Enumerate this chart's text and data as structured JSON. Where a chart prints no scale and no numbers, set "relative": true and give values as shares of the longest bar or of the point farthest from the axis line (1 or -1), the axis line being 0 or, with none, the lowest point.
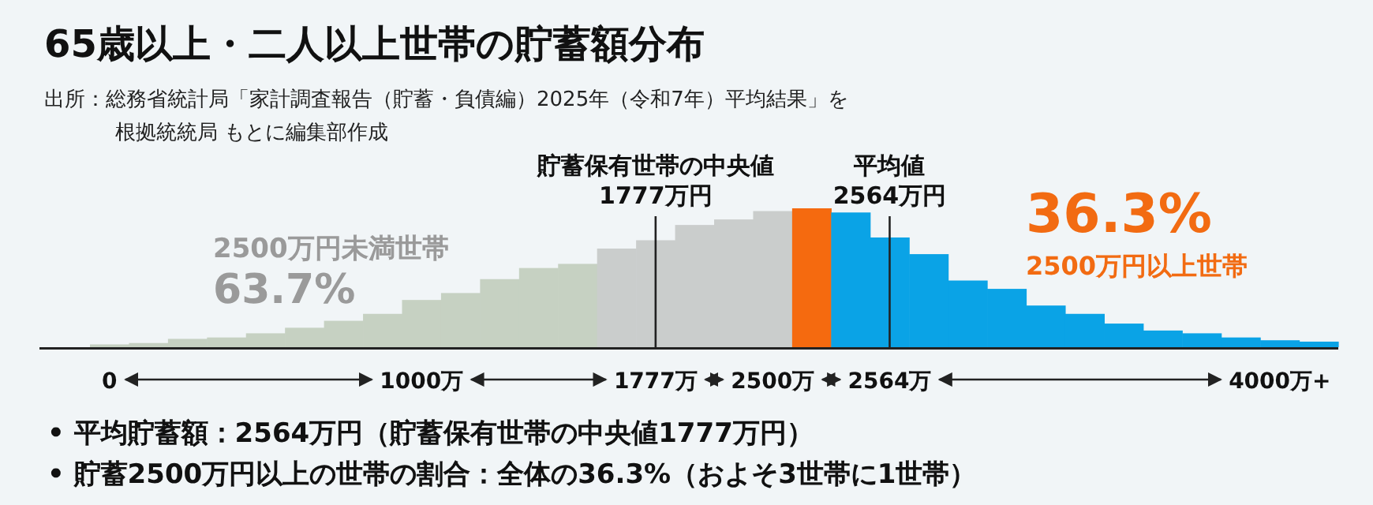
{
  "chart_data": {
    "type": "bar",
    "relative": true,
    "title": "65歳以上・二人以上世帯の貯蓄額分布",
    "annotations": [
      "出所：総務省統計局「家計調査報告（貯蓄・負債編）2025年（令和7年）平均結果」を",
      "根拠統統局 もとに編集部作成",
      "2500万円未満世帯",
      "63.7%",
      "36.3%",
      "2500万円以上世帯",
      "• 平均貯蓄額：2564万円（貯蓄保有世帯の中央値1777万円）",
      "• 貯蓄2500万円以上の世帯の割合：全体の36.3%（およそ3世帯に1世帯）"
    ],
    "categories": [
      "0",
      null,
      null,
      null,
      null,
      null,
      null,
      null,
      "1000万",
      null,
      null,
      null,
      null,
      null,
      "1777万",
      null,
      null,
      "2500万",
      null,
      null,
      "2564万",
      null,
      null,
      null,
      null,
      null,
      null,
      null,
      null,
      null,
      "4000万+",
      null
    ],
    "values": [
      0.02,
      0.03,
      0.06,
      0.07,
      0.1,
      0.14,
      0.19,
      0.24,
      0.34,
      0.39,
      0.49,
      0.57,
      0.6,
      0.71,
      0.77,
      0.88,
      0.92,
      0.98,
      1,
      0.97,
      0.79,
      0.67,
      0.48,
      0.42,
      0.3,
      0.24,
      0.17,
      0.12,
      0.1,
      0.07,
      0.05,
      0.04
    ],
    "colors": [
      "#c6d1c2",
      "#c6d1c2",
      "#c6d1c2",
      "#c6d1c2",
      "#c6d1c2",
      "#c6d1c2",
      "#c6d1c2",
      "#c6d1c2",
      "#c6d1c2",
      "#c6d1c2",
      "#c6d1c2",
      "#c6d1c2",
      "#c6d1c2",
      "#cacdcc",
      "#cacdcc",
      "#cacdcc",
      "#cacdcc",
      "#cacdcc",
      "#f56a0f",
      "#0aa3e6",
      "#0aa3e6",
      "#0aa3e6",
      "#0aa3e6",
      "#0aa3e6",
      "#0aa3e6",
      "#0aa3e6",
      "#0aa3e6",
      "#0aa3e6",
      "#0aa3e6",
      "#0aa3e6",
      "#0aa3e6",
      "#0aa3e6"
    ],
    "ref_lines": [
      {
        "axis": "x",
        "value": "1777万",
        "label": "貯蓄保有世帯の中央値\n1777万円",
        "color": "#222222"
      },
      {
        "axis": "x",
        "value": "2564万",
        "label": "平均値\n2564万円",
        "color": "#222222"
      }
    ]
  }
}
